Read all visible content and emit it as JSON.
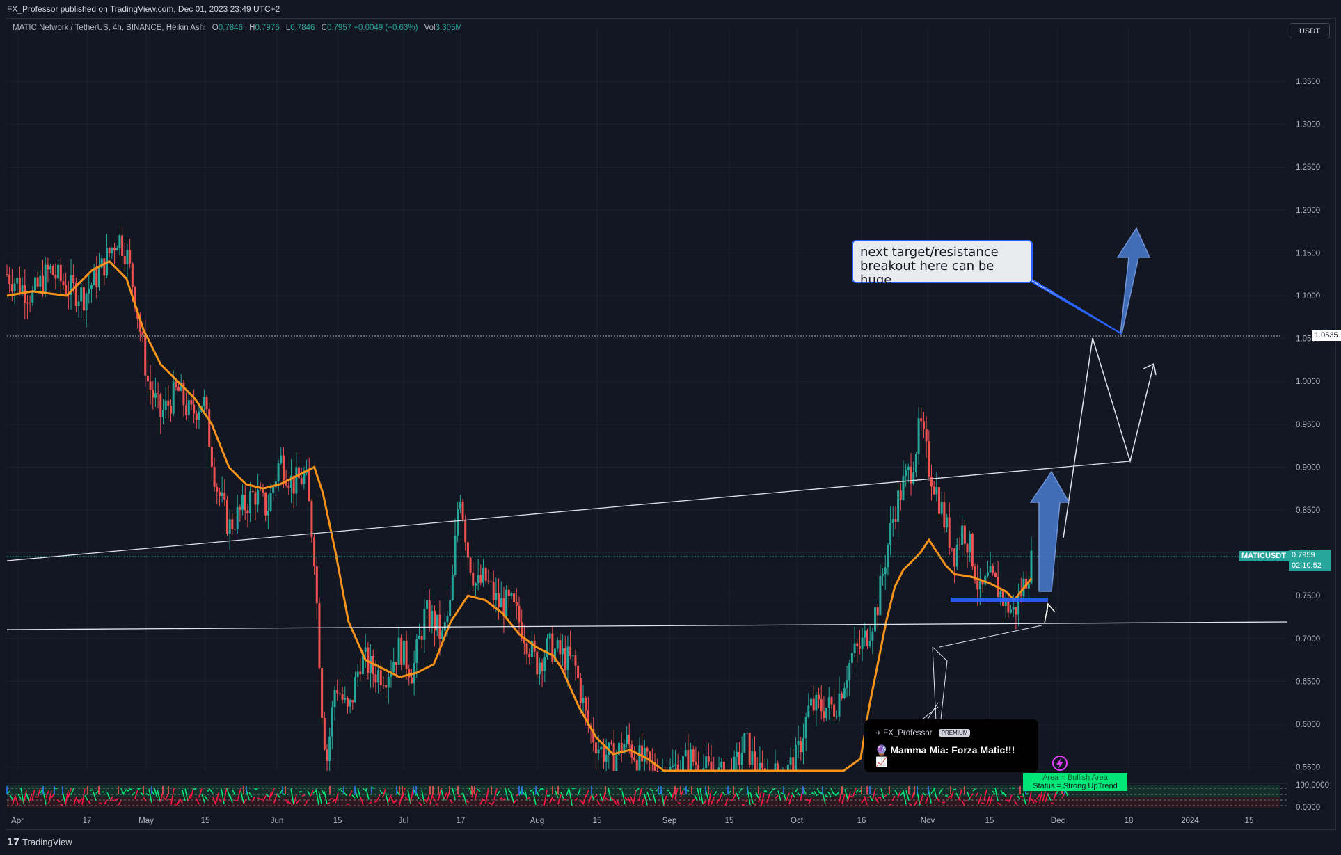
{
  "header": {
    "published": "FX_Professor published on TradingView.com, Dec 01, 2023 23:49 UTC+2"
  },
  "legend": {
    "symbol": "MATIC Network / TetherUS, 4h, BINANCE, Heikin Ashi",
    "o_label": "O",
    "o_value": "0.7846",
    "h_label": "H",
    "h_value": "0.7976",
    "l_label": "L",
    "l_value": "0.7846",
    "c_label": "C",
    "c_value": "0.7957",
    "change": "+0.0049 (+0.63%)",
    "vol_label": "Vol",
    "vol_value": "3.305M"
  },
  "currency": "USDT",
  "callout": {
    "line1": "next target/resistance",
    "line2": "breakout here can be huge"
  },
  "idea_card": {
    "author": "FX_Professor",
    "badge": "PREMIUM",
    "title": "🔮 Mamma Mia: Forza Matic!!! 📈"
  },
  "indicator_status": {
    "line1": "Area = Bullish Area",
    "line2": "Status = Strong UpTrend"
  },
  "price_tags": {
    "level": "1.0535",
    "symbol_tag": "MATICUSDT",
    "last_price": "0.7959",
    "countdown": "02:10:52"
  },
  "footer": {
    "brand": "TradingView"
  },
  "colors": {
    "background": "#131722",
    "up": "#26a69a",
    "down": "#ef5350",
    "ma": "#f7931a",
    "arrow": "#4a7bd0",
    "indicator_up": "#00e676",
    "indicator_down": "#ff1744"
  },
  "chart_data": {
    "type": "line",
    "price_axis": {
      "ticks": [
        "1.3500",
        "1.3000",
        "1.2500",
        "1.2000",
        "1.1500",
        "1.1000",
        "1.0500",
        "1.0000",
        "0.9500",
        "0.9000",
        "0.8500",
        "0.8000",
        "0.7500",
        "0.7000",
        "0.6500",
        "0.6000",
        "0.5500"
      ],
      "range": [
        0.545,
        1.4
      ]
    },
    "indicator_axis": {
      "ticks": [
        "100.0000",
        "0.0000"
      ]
    },
    "time_axis": {
      "labels": [
        "Apr",
        "17",
        "May",
        "15",
        "Jun",
        "15",
        "Jul",
        "17",
        "Aug",
        "15",
        "Sep",
        "15",
        "Oct",
        "16",
        "Nov",
        "15",
        "Dec",
        "18",
        "2024",
        "15"
      ]
    },
    "series": [
      {
        "close_points": [
          [
            0,
            1.125
          ],
          [
            6,
            1.1
          ],
          [
            10,
            1.13
          ],
          [
            14,
            1.11
          ],
          [
            18,
            1.1
          ],
          [
            22,
            1.13
          ],
          [
            26,
            1.17
          ],
          [
            28,
            1.15
          ],
          [
            30,
            1.1
          ],
          [
            33,
            1.0
          ],
          [
            36,
            0.96
          ],
          [
            40,
            0.99
          ],
          [
            43,
            0.96
          ],
          [
            46,
            0.98
          ],
          [
            49,
            0.88
          ],
          [
            52,
            0.83
          ],
          [
            55,
            0.85
          ],
          [
            58,
            0.87
          ],
          [
            61,
            0.85
          ],
          [
            64,
            0.91
          ],
          [
            67,
            0.88
          ],
          [
            70,
            0.89
          ],
          [
            72,
            0.8
          ],
          [
            74,
            0.6
          ],
          [
            75,
            0.56
          ],
          [
            77,
            0.65
          ],
          [
            80,
            0.61
          ],
          [
            83,
            0.68
          ],
          [
            86,
            0.66
          ],
          [
            89,
            0.66
          ],
          [
            92,
            0.69
          ],
          [
            95,
            0.66
          ],
          [
            98,
            0.73
          ],
          [
            100,
            0.72
          ],
          [
            102,
            0.7
          ],
          [
            104,
            0.74
          ],
          [
            106,
            0.88
          ],
          [
            108,
            0.8
          ],
          [
            110,
            0.76
          ],
          [
            112,
            0.77
          ],
          [
            115,
            0.74
          ],
          [
            118,
            0.74
          ],
          [
            121,
            0.71
          ],
          [
            124,
            0.67
          ],
          [
            127,
            0.69
          ],
          [
            130,
            0.68
          ],
          [
            133,
            0.67
          ],
          [
            136,
            0.6
          ],
          [
            139,
            0.57
          ],
          [
            142,
            0.56
          ],
          [
            145,
            0.58
          ],
          [
            148,
            0.56
          ],
          [
            151,
            0.55
          ],
          [
            154,
            0.54
          ],
          [
            160,
            0.56
          ],
          [
            166,
            0.54
          ],
          [
            170,
            0.54
          ],
          [
            173,
            0.58
          ],
          [
            176,
            0.54
          ],
          [
            179,
            0.54
          ],
          [
            182,
            0.54
          ],
          [
            185,
            0.56
          ],
          [
            188,
            0.62
          ],
          [
            191,
            0.62
          ],
          [
            194,
            0.62
          ],
          [
            196,
            0.65
          ],
          [
            198,
            0.68
          ],
          [
            200,
            0.69
          ],
          [
            202,
            0.71
          ],
          [
            204,
            0.74
          ],
          [
            206,
            0.8
          ],
          [
            208,
            0.85
          ],
          [
            210,
            0.88
          ],
          [
            212,
            0.9
          ],
          [
            214,
            0.95
          ],
          [
            216,
            0.9
          ],
          [
            218,
            0.87
          ],
          [
            220,
            0.83
          ],
          [
            222,
            0.8
          ],
          [
            224,
            0.83
          ],
          [
            226,
            0.8
          ],
          [
            228,
            0.75
          ],
          [
            230,
            0.77
          ],
          [
            232,
            0.76
          ],
          [
            234,
            0.74
          ],
          [
            236,
            0.73
          ],
          [
            238,
            0.76
          ],
          [
            240,
            0.79
          ]
        ]
      },
      {
        "ma_points": [
          [
            0,
            1.1
          ],
          [
            6,
            1.105
          ],
          [
            14,
            1.1
          ],
          [
            20,
            1.13
          ],
          [
            24,
            1.14
          ],
          [
            28,
            1.12
          ],
          [
            32,
            1.06
          ],
          [
            36,
            1.02
          ],
          [
            40,
            1.0
          ],
          [
            44,
            0.98
          ],
          [
            48,
            0.95
          ],
          [
            52,
            0.9
          ],
          [
            56,
            0.88
          ],
          [
            60,
            0.875
          ],
          [
            64,
            0.88
          ],
          [
            68,
            0.89
          ],
          [
            72,
            0.9
          ],
          [
            74,
            0.87
          ],
          [
            77,
            0.8
          ],
          [
            80,
            0.72
          ],
          [
            84,
            0.675
          ],
          [
            88,
            0.665
          ],
          [
            92,
            0.655
          ],
          [
            96,
            0.66
          ],
          [
            100,
            0.67
          ],
          [
            104,
            0.72
          ],
          [
            108,
            0.75
          ],
          [
            112,
            0.745
          ],
          [
            116,
            0.73
          ],
          [
            120,
            0.705
          ],
          [
            124,
            0.69
          ],
          [
            128,
            0.68
          ],
          [
            130,
            0.665
          ],
          [
            134,
            0.62
          ],
          [
            138,
            0.585
          ],
          [
            142,
            0.565
          ],
          [
            146,
            0.57
          ],
          [
            150,
            0.56
          ],
          [
            154,
            0.545
          ],
          [
            196,
            0.52
          ],
          [
            200,
            0.56
          ],
          [
            202,
            0.62
          ],
          [
            204,
            0.67
          ],
          [
            206,
            0.72
          ],
          [
            208,
            0.76
          ],
          [
            210,
            0.78
          ],
          [
            212,
            0.79
          ],
          [
            214,
            0.8
          ],
          [
            216,
            0.815
          ],
          [
            218,
            0.8
          ],
          [
            220,
            0.785
          ],
          [
            222,
            0.775
          ],
          [
            226,
            0.772
          ],
          [
            230,
            0.765
          ],
          [
            234,
            0.755
          ],
          [
            236,
            0.745
          ],
          [
            240,
            0.77
          ]
        ]
      }
    ]
  }
}
